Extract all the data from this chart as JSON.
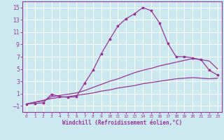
{
  "background_color": "#cbe9ee",
  "grid_color": "#ffffff",
  "line_color": "#993399",
  "xlabel": "Windchill (Refroidissement éolien,°C)",
  "xlim": [
    -0.5,
    23.5
  ],
  "ylim": [
    -2.0,
    16.0
  ],
  "xticks": [
    0,
    1,
    2,
    3,
    4,
    5,
    6,
    7,
    8,
    9,
    10,
    11,
    12,
    13,
    14,
    15,
    16,
    17,
    18,
    19,
    20,
    21,
    22,
    23
  ],
  "yticks": [
    -1,
    1,
    3,
    5,
    7,
    9,
    11,
    13,
    15
  ],
  "curve1_x": [
    0,
    1,
    2,
    3,
    4,
    5,
    6,
    7,
    8,
    9,
    10,
    11,
    12,
    13,
    14,
    15,
    16,
    17,
    18,
    19,
    20,
    21,
    22,
    23
  ],
  "curve1_y": [
    -0.7,
    -0.6,
    -0.5,
    0.9,
    0.5,
    0.4,
    0.5,
    2.7,
    4.8,
    7.5,
    9.8,
    12.0,
    13.2,
    14.0,
    15.0,
    14.5,
    12.5,
    9.2,
    7.0,
    7.0,
    6.8,
    6.5,
    4.8,
    4.0
  ],
  "curve2_x": [
    0,
    1,
    2,
    3,
    4,
    5,
    6,
    7,
    8,
    9,
    10,
    11,
    12,
    13,
    14,
    15,
    16,
    17,
    18,
    19,
    20,
    21,
    22,
    23
  ],
  "curve2_y": [
    -0.7,
    -0.4,
    -0.2,
    0.5,
    0.7,
    0.9,
    1.1,
    1.5,
    2.0,
    2.5,
    3.0,
    3.4,
    3.9,
    4.4,
    4.8,
    5.1,
    5.5,
    5.8,
    6.1,
    6.4,
    6.7,
    6.5,
    6.3,
    5.0
  ],
  "curve3_x": [
    0,
    1,
    2,
    3,
    4,
    5,
    6,
    7,
    8,
    9,
    10,
    11,
    12,
    13,
    14,
    15,
    16,
    17,
    18,
    19,
    20,
    21,
    22,
    23
  ],
  "curve3_y": [
    -0.7,
    -0.4,
    -0.1,
    0.2,
    0.4,
    0.5,
    0.7,
    0.9,
    1.1,
    1.4,
    1.6,
    1.9,
    2.1,
    2.3,
    2.6,
    2.8,
    3.0,
    3.2,
    3.4,
    3.5,
    3.6,
    3.5,
    3.4,
    3.5
  ]
}
